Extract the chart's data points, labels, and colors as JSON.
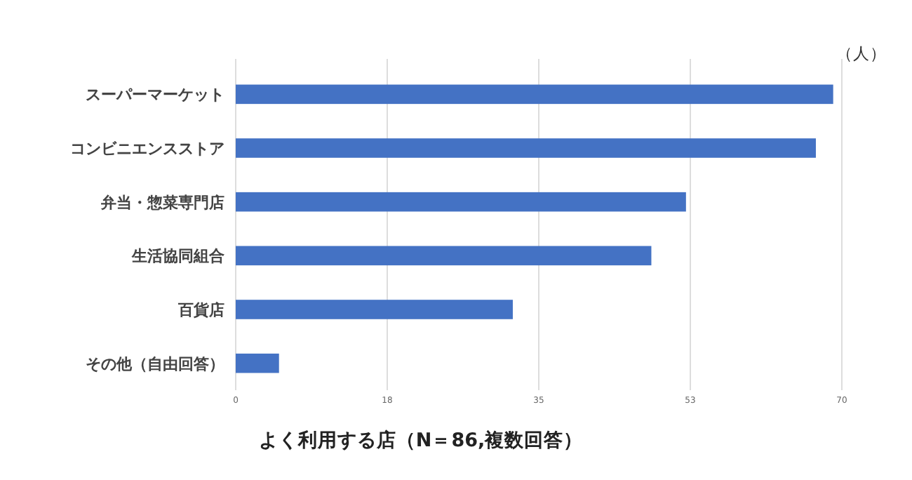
{
  "chart_data": {
    "type": "bar",
    "orientation": "horizontal",
    "title": "よく利用する店（N＝86,複数回答）",
    "xlabel": "（人）",
    "categories": [
      "スーパーマーケット",
      "コンビニエンスストア",
      "弁当・惣菜専門店",
      "生活協同組合",
      "百貨店",
      "その他（自由回答）"
    ],
    "values": [
      69,
      67,
      52,
      48,
      32,
      5
    ],
    "color": "#4472c4",
    "xlim": [
      0,
      70
    ],
    "xticks": [
      0,
      {
        "value": 17.5,
        "label": "18"
      },
      35,
      {
        "value": 52.5,
        "label": "53"
      },
      70
    ],
    "grid": "x"
  }
}
